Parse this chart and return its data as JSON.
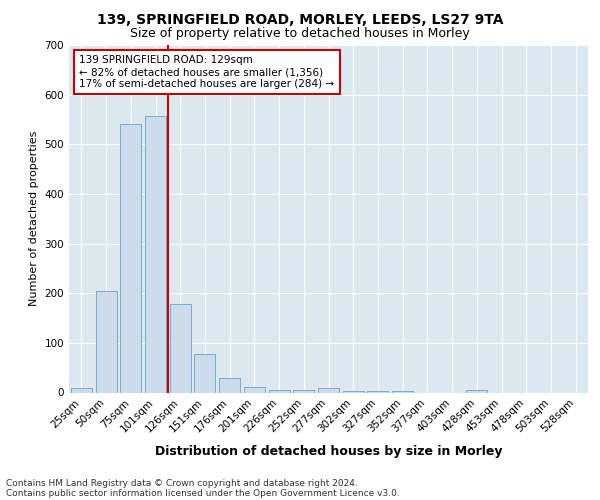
{
  "title1": "139, SPRINGFIELD ROAD, MORLEY, LEEDS, LS27 9TA",
  "title2": "Size of property relative to detached houses in Morley",
  "xlabel": "Distribution of detached houses by size in Morley",
  "ylabel": "Number of detached properties",
  "categories": [
    "25sqm",
    "50sqm",
    "75sqm",
    "101sqm",
    "126sqm",
    "151sqm",
    "176sqm",
    "201sqm",
    "226sqm",
    "252sqm",
    "277sqm",
    "302sqm",
    "327sqm",
    "352sqm",
    "377sqm",
    "403sqm",
    "428sqm",
    "453sqm",
    "478sqm",
    "503sqm",
    "528sqm"
  ],
  "values": [
    10,
    204,
    541,
    557,
    178,
    78,
    29,
    11,
    6,
    5,
    10,
    4,
    3,
    3,
    0,
    0,
    5,
    0,
    0,
    0,
    0
  ],
  "bar_color": "#ccdcec",
  "bar_edge_color": "#7aaBcc",
  "vline_x_idx": 4,
  "vline_color": "#cc0000",
  "annotation_line1": "139 SPRINGFIELD ROAD: 129sqm",
  "annotation_line2": "← 82% of detached houses are smaller (1,356)",
  "annotation_line3": "17% of semi-detached houses are larger (284) →",
  "annotation_box_facecolor": "white",
  "annotation_box_edgecolor": "#cc0000",
  "footnote1": "Contains HM Land Registry data © Crown copyright and database right 2024.",
  "footnote2": "Contains public sector information licensed under the Open Government Licence v3.0.",
  "fig_facecolor": "#ffffff",
  "axes_facecolor": "#dce8f0",
  "ylim": [
    0,
    700
  ],
  "yticks": [
    0,
    100,
    200,
    300,
    400,
    500,
    600,
    700
  ],
  "title1_fontsize": 10,
  "title2_fontsize": 9,
  "xlabel_fontsize": 9,
  "ylabel_fontsize": 8,
  "tick_fontsize": 7.5,
  "footnote_fontsize": 6.5
}
